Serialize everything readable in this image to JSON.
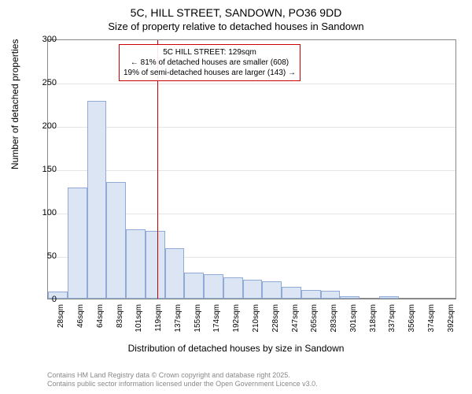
{
  "title": {
    "main": "5C, HILL STREET, SANDOWN, PO36 9DD",
    "sub": "Size of property relative to detached houses in Sandown",
    "fontsize_main": 14,
    "fontsize_sub": 13,
    "color": "#000000"
  },
  "chart": {
    "type": "histogram",
    "background_color": "#ffffff",
    "border_color": "#888888",
    "grid_color": "#e5e5e5",
    "bar_fill_color": "#dbe5f3",
    "bar_border_color": "#8faad4",
    "ylabel": "Number of detached properties",
    "xlabel": "Distribution of detached houses by size in Sandown",
    "label_fontsize": 12,
    "tick_fontsize": 11,
    "ylim": [
      0,
      300
    ],
    "ytick_step": 50,
    "yticks": [
      0,
      50,
      100,
      150,
      200,
      250,
      300
    ],
    "xticks": [
      "28sqm",
      "46sqm",
      "64sqm",
      "83sqm",
      "101sqm",
      "119sqm",
      "137sqm",
      "155sqm",
      "174sqm",
      "192sqm",
      "210sqm",
      "228sqm",
      "247sqm",
      "265sqm",
      "283sqm",
      "301sqm",
      "318sqm",
      "337sqm",
      "356sqm",
      "374sqm",
      "392sqm"
    ],
    "values": [
      8,
      128,
      228,
      135,
      80,
      78,
      58,
      30,
      28,
      25,
      22,
      20,
      14,
      10,
      9,
      3,
      0,
      3,
      0,
      0,
      0
    ],
    "bar_width": 1.0
  },
  "marker": {
    "position_index": 5.6,
    "color": "#cc0000",
    "width": 1
  },
  "annotation": {
    "lines": [
      "5C HILL STREET: 129sqm",
      "← 81% of detached houses are smaller (608)",
      "19% of semi-detached houses are larger (143) →"
    ],
    "border_color": "#cc0000",
    "background_color": "rgba(255,255,255,0.9)",
    "fontsize": 10,
    "text_color": "#000000"
  },
  "attribution": {
    "line1": "Contains HM Land Registry data © Crown copyright and database right 2025.",
    "line2": "Contains public sector information licensed under the Open Government Licence v3.0.",
    "fontsize": 9,
    "color": "#888888"
  }
}
